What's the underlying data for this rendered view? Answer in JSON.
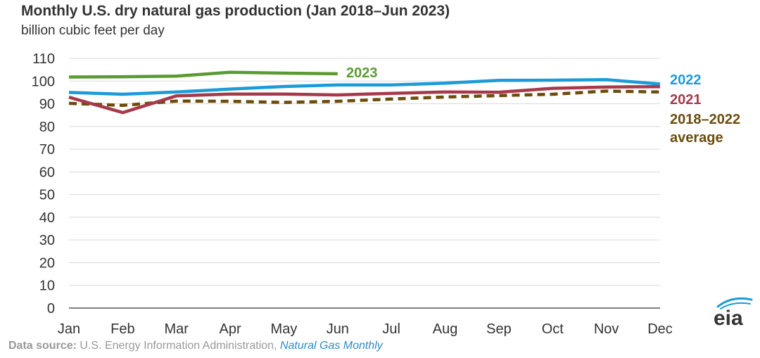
{
  "title": "Monthly U.S. dry natural gas production (Jan 2018–Jun 2023)",
  "subtitle": "billion cubic feet per day",
  "source": {
    "label": "Data source:",
    "text": "U.S. Energy Information Administration,",
    "publication": "Natural Gas Monthly"
  },
  "logo": {
    "text": "eia",
    "icon": "eia-logo"
  },
  "colors": {
    "y2023": "#5b9a31",
    "y2022": "#1b9bd7",
    "y2021": "#a6394a",
    "avg": "#6b4c0b",
    "grid": "#d9d9d9",
    "axis": "#333333"
  },
  "chart_data": {
    "type": "line",
    "title": "Monthly U.S. dry natural gas production (Jan 2018–Jun 2023)",
    "ylabel": "billion cubic feet per day",
    "xlabel": "",
    "categories": [
      "Jan",
      "Feb",
      "Mar",
      "Apr",
      "May",
      "Jun",
      "Jul",
      "Aug",
      "Sep",
      "Oct",
      "Nov",
      "Dec"
    ],
    "ylim": [
      0,
      110
    ],
    "yticks": [
      0,
      10,
      20,
      30,
      40,
      50,
      60,
      70,
      80,
      90,
      100,
      110
    ],
    "grid": true,
    "legend": "inline-right",
    "series": [
      {
        "name": "2023",
        "key": "y2023",
        "dashed": false,
        "labels": [
          "2023"
        ],
        "values": [
          101.8,
          101.9,
          102.2,
          103.9,
          103.5,
          103.2,
          null,
          null,
          null,
          null,
          null,
          null
        ]
      },
      {
        "name": "2022",
        "key": "y2022",
        "dashed": false,
        "labels": [
          "2022"
        ],
        "values": [
          95.0,
          94.2,
          95.2,
          96.5,
          97.6,
          98.3,
          98.3,
          99.1,
          100.3,
          100.4,
          100.6,
          98.7
        ]
      },
      {
        "name": "2021",
        "key": "y2021",
        "dashed": false,
        "labels": [
          "2021"
        ],
        "values": [
          92.9,
          86.1,
          93.5,
          94.3,
          94.3,
          93.9,
          94.6,
          95.2,
          95.1,
          96.8,
          97.4,
          97.5
        ]
      },
      {
        "name": "2018–2022 average",
        "key": "avg",
        "dashed": true,
        "labels": [
          "2018–2022",
          "average"
        ],
        "values": [
          90.2,
          89.3,
          91.2,
          91.1,
          90.6,
          91.1,
          92.1,
          93.0,
          93.6,
          94.2,
          95.6,
          95.2
        ]
      }
    ]
  }
}
